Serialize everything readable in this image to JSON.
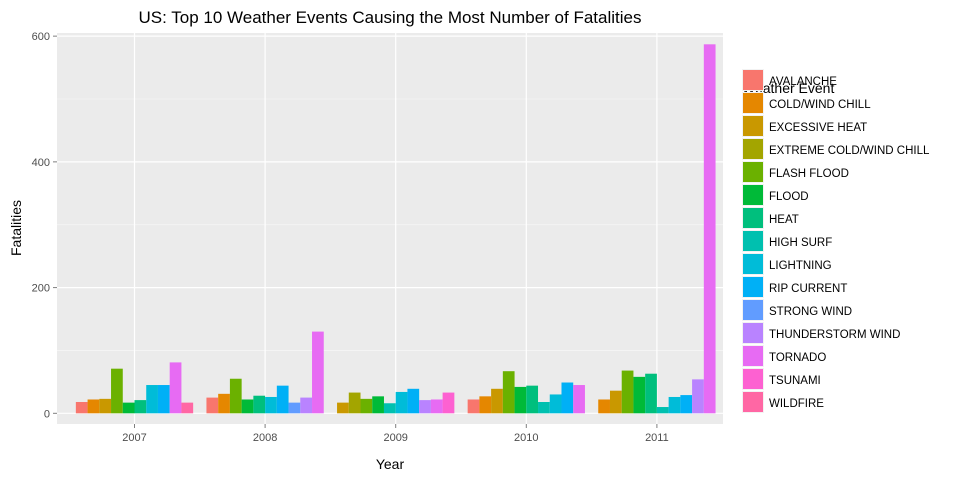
{
  "chart_data": {
    "type": "bar",
    "title": "US: Top 10 Weather Events Causing the Most Number of Fatalities",
    "xlabel": "Year",
    "ylabel": "Fatalities",
    "ylim": [
      -17,
      605
    ],
    "yticks": [
      0,
      200,
      400,
      600
    ],
    "grid": true,
    "background": "#ebebeb",
    "legend_title": "Weather Event",
    "legend_position": "right",
    "categories": [
      "2007",
      "2008",
      "2009",
      "2010",
      "2011"
    ],
    "series": [
      {
        "name": "AVALANCHE",
        "color": "#F8766D",
        "values": [
          18,
          25,
          null,
          22,
          null
        ]
      },
      {
        "name": "COLD/WIND CHILL",
        "color": "#E58700",
        "values": [
          22,
          31,
          null,
          27,
          22
        ]
      },
      {
        "name": "EXCESSIVE HEAT",
        "color": "#C99800",
        "values": [
          23,
          null,
          17,
          39,
          36
        ]
      },
      {
        "name": "EXTREME COLD/WIND CHILL",
        "color": "#A3A500",
        "values": [
          null,
          null,
          33,
          null,
          null
        ]
      },
      {
        "name": "FLASH FLOOD",
        "color": "#6BB100",
        "values": [
          71,
          55,
          23,
          67,
          68
        ]
      },
      {
        "name": "FLOOD",
        "color": "#00BA38",
        "values": [
          17,
          22,
          27,
          42,
          58
        ]
      },
      {
        "name": "HEAT",
        "color": "#00BF7D",
        "values": [
          21,
          28,
          null,
          44,
          63
        ]
      },
      {
        "name": "HIGH SURF",
        "color": "#00C0AF",
        "values": [
          null,
          null,
          16,
          18,
          10
        ]
      },
      {
        "name": "LIGHTNING",
        "color": "#00BCD8",
        "values": [
          45,
          26,
          34,
          30,
          26
        ]
      },
      {
        "name": "RIP CURRENT",
        "color": "#00B0F6",
        "values": [
          45,
          44,
          39,
          49,
          29
        ]
      },
      {
        "name": "STRONG WIND",
        "color": "#619CFF",
        "values": [
          null,
          17,
          null,
          null,
          null
        ]
      },
      {
        "name": "THUNDERSTORM WIND",
        "color": "#B983FF",
        "values": [
          null,
          25,
          21,
          null,
          54
        ]
      },
      {
        "name": "TORNADO",
        "color": "#E76BF3",
        "values": [
          81,
          130,
          22,
          45,
          587
        ]
      },
      {
        "name": "TSUNAMI",
        "color": "#FD61D1",
        "values": [
          null,
          null,
          33,
          null,
          null
        ]
      },
      {
        "name": "WILDFIRE",
        "color": "#FF67A4",
        "values": [
          17,
          null,
          null,
          null,
          null
        ]
      }
    ]
  }
}
